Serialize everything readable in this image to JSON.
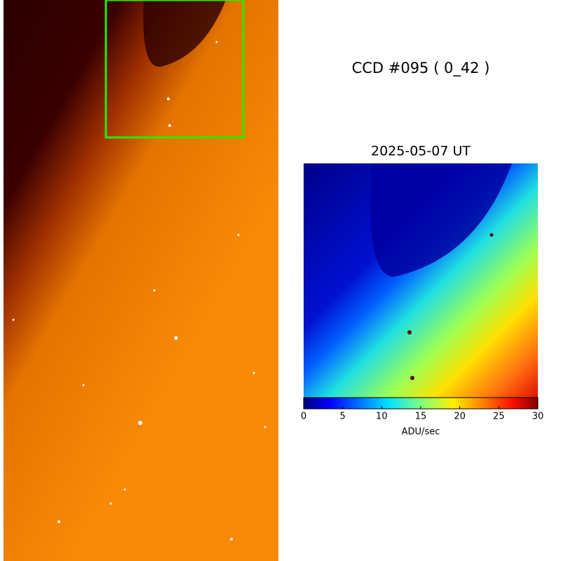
{
  "title": "CCD #095 ( 0_42 )",
  "date": "2025-05-07 UT",
  "colorbar": {
    "lim": [
      0,
      30
    ],
    "ticks": [
      0,
      5,
      10,
      15,
      20,
      25,
      30
    ],
    "label": "ADU/sec"
  }
}
